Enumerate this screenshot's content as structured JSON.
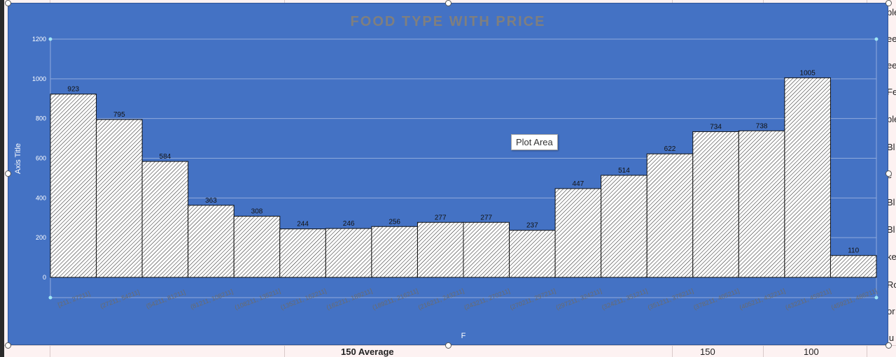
{
  "sheet": {
    "bottom_row": {
      "average_label": "150 Average",
      "value_a": "150",
      "value_b": "100"
    },
    "right_edge_fragments": [
      "ble",
      "ee",
      "ee",
      "Fe",
      "ble",
      "Bl",
      "e",
      "Bl",
      "Bl",
      "ke",
      "Ro",
      "or",
      "lu"
    ]
  },
  "tooltip": {
    "label": "Plot Area"
  },
  "colors": {
    "chart_background": "#4472c4",
    "bar_fill": "#ffffff",
    "bar_hatch": "#1a1a1a",
    "title": "#7f7f7f"
  },
  "chart_data": {
    "type": "bar",
    "title": "FOOD TYPE WITH PRICE",
    "xlabel": "F",
    "ylabel": "Axis Title",
    "ylim": [
      0,
      1200
    ],
    "yticks": [
      0,
      200,
      400,
      600,
      800,
      1000,
      1200
    ],
    "grid": true,
    "categories": [
      "[211, 27211]",
      "(27211, 54211]",
      "(54211, 81211]",
      "(81211, 108211]",
      "(108211, 135211]",
      "(135211, 162211]",
      "(162211, 189211]",
      "(189211, 216211]",
      "(216211, 243211]",
      "(243211, 270211]",
      "(270211, 297211]",
      "(297211, 324211]",
      "(324211, 351211]",
      "(351211, 378211]",
      "(378211, 405211]",
      "(405211, 432211]",
      "(432211, 459211]",
      "(459211, 486211]"
    ],
    "values": [
      923,
      795,
      584,
      363,
      308,
      244,
      246,
      256,
      277,
      277,
      237,
      447,
      514,
      622,
      734,
      738,
      1005,
      110
    ]
  }
}
